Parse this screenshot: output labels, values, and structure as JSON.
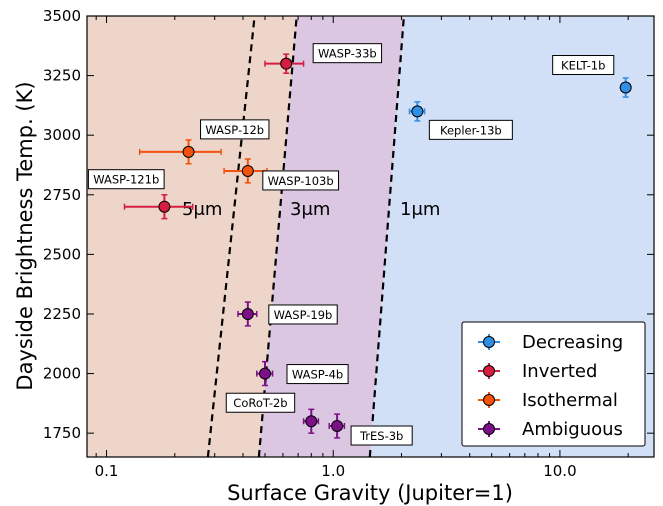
{
  "chart_data": {
    "type": "scatter",
    "xlabel": "Surface Gravity (Jupiter=1)",
    "ylabel": "Dayside Brightness Temp. (K)",
    "xscale": "log",
    "xlim": [
      0.082,
      26
    ],
    "ylim": [
      1650,
      3500
    ],
    "xticks": [
      {
        "value": 0.1,
        "label": "0.1"
      },
      {
        "value": 1,
        "label": "1.0"
      },
      {
        "value": 10,
        "label": "10.0"
      }
    ],
    "yticks": [
      {
        "value": 1750,
        "label": "1750"
      },
      {
        "value": 2000,
        "label": "2000"
      },
      {
        "value": 2250,
        "label": "2250"
      },
      {
        "value": 2500,
        "label": "2500"
      },
      {
        "value": 2750,
        "label": "2750"
      },
      {
        "value": 3000,
        "label": "3000"
      },
      {
        "value": 3250,
        "label": "3250"
      },
      {
        "value": 3500,
        "label": "3500"
      }
    ],
    "boundaries": [
      {
        "label": "5μm",
        "from": [
          0.28,
          1650
        ],
        "to": [
          0.45,
          3500
        ]
      },
      {
        "label": "3μm",
        "from": [
          0.47,
          1650
        ],
        "to": [
          0.69,
          3500
        ]
      },
      {
        "label": "1μm",
        "from": [
          1.45,
          1650
        ],
        "to": [
          2.05,
          3500
        ]
      }
    ],
    "regions": {
      "5um": "#eed5c9",
      "3um": "#dbc7e1",
      "1um": "#d2e0f7"
    },
    "legend": {
      "position": "bottom-right",
      "entries": [
        {
          "name": "Decreasing",
          "color": "#2f8fe4"
        },
        {
          "name": "Inverted",
          "color": "#d51e42"
        },
        {
          "name": "Isothermal",
          "color": "#f2520e"
        },
        {
          "name": "Ambiguous",
          "color": "#7d1088"
        }
      ]
    },
    "series": [
      {
        "name": "Decreasing",
        "color": "#2f8fe4",
        "points": [
          {
            "planet": "KELT-1b",
            "x": 19.5,
            "y": 3200,
            "xerr": [
              0.5,
              0.5
            ],
            "yerr": [
              40,
              40
            ]
          },
          {
            "planet": "Kepler-13b",
            "x": 2.35,
            "y": 3100,
            "xerr": [
              0.18,
              0.18
            ],
            "yerr": [
              40,
              40
            ]
          }
        ]
      },
      {
        "name": "Inverted",
        "color": "#d51e42",
        "points": [
          {
            "planet": "WASP-33b",
            "x": 0.62,
            "y": 3300,
            "xerr": [
              0.12,
              0.12
            ],
            "yerr": [
              40,
              40
            ]
          },
          {
            "planet": "WASP-121b",
            "x": 0.18,
            "y": 2700,
            "xerr": [
              0.06,
              0.06
            ],
            "yerr": [
              50,
              50
            ]
          }
        ]
      },
      {
        "name": "Isothermal",
        "color": "#f2520e",
        "points": [
          {
            "planet": "WASP-12b",
            "x": 0.23,
            "y": 2930,
            "xerr": [
              0.09,
              0.09
            ],
            "yerr": [
              50,
              50
            ]
          },
          {
            "planet": "WASP-103b",
            "x": 0.42,
            "y": 2850,
            "xerr": [
              0.09,
              0.09
            ],
            "yerr": [
              50,
              50
            ]
          }
        ]
      },
      {
        "name": "Ambiguous",
        "color": "#7d1088",
        "points": [
          {
            "planet": "WASP-19b",
            "x": 0.42,
            "y": 2250,
            "xerr": [
              0.04,
              0.04
            ],
            "yerr": [
              50,
              50
            ]
          },
          {
            "planet": "WASP-4b",
            "x": 0.5,
            "y": 2000,
            "xerr": [
              0.04,
              0.04
            ],
            "yerr": [
              50,
              50
            ]
          },
          {
            "planet": "CoRoT-2b",
            "x": 0.8,
            "y": 1800,
            "xerr": [
              0.06,
              0.06
            ],
            "yerr": [
              50,
              50
            ]
          },
          {
            "planet": "TrES-3b",
            "x": 1.04,
            "y": 1780,
            "xerr": [
              0.08,
              0.08
            ],
            "yerr": [
              50,
              50
            ]
          }
        ]
      }
    ]
  }
}
